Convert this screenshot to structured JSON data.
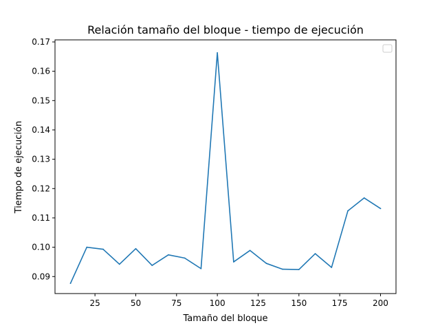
{
  "chart_data": {
    "type": "line",
    "title": "Relación tamaño del bloque - tiempo de ejecución",
    "xlabel": "Tamaño del bloque",
    "ylabel": "Tiempo de ejecución",
    "xlim": [
      0.5,
      209.5
    ],
    "ylim": [
      0.0842,
      0.1707
    ],
    "x_ticks": [
      25,
      50,
      75,
      100,
      125,
      150,
      175,
      200
    ],
    "y_ticks": [
      0.09,
      0.1,
      0.11,
      0.12,
      0.13,
      0.14,
      0.15,
      0.16,
      0.17
    ],
    "grid": false,
    "legend": {
      "placement": "top-right",
      "entries": []
    },
    "series": [
      {
        "color": "#1f77b4",
        "x": [
          10,
          20,
          30,
          40,
          50,
          60,
          70,
          80,
          90,
          100,
          110,
          120,
          130,
          140,
          150,
          160,
          170,
          180,
          190,
          200
        ],
        "y": [
          0.0877,
          0.1,
          0.0993,
          0.0942,
          0.0995,
          0.0938,
          0.0974,
          0.0963,
          0.0927,
          0.1663,
          0.095,
          0.0989,
          0.0945,
          0.0925,
          0.0924,
          0.0978,
          0.0931,
          0.1124,
          0.1168,
          0.1132
        ]
      }
    ]
  }
}
